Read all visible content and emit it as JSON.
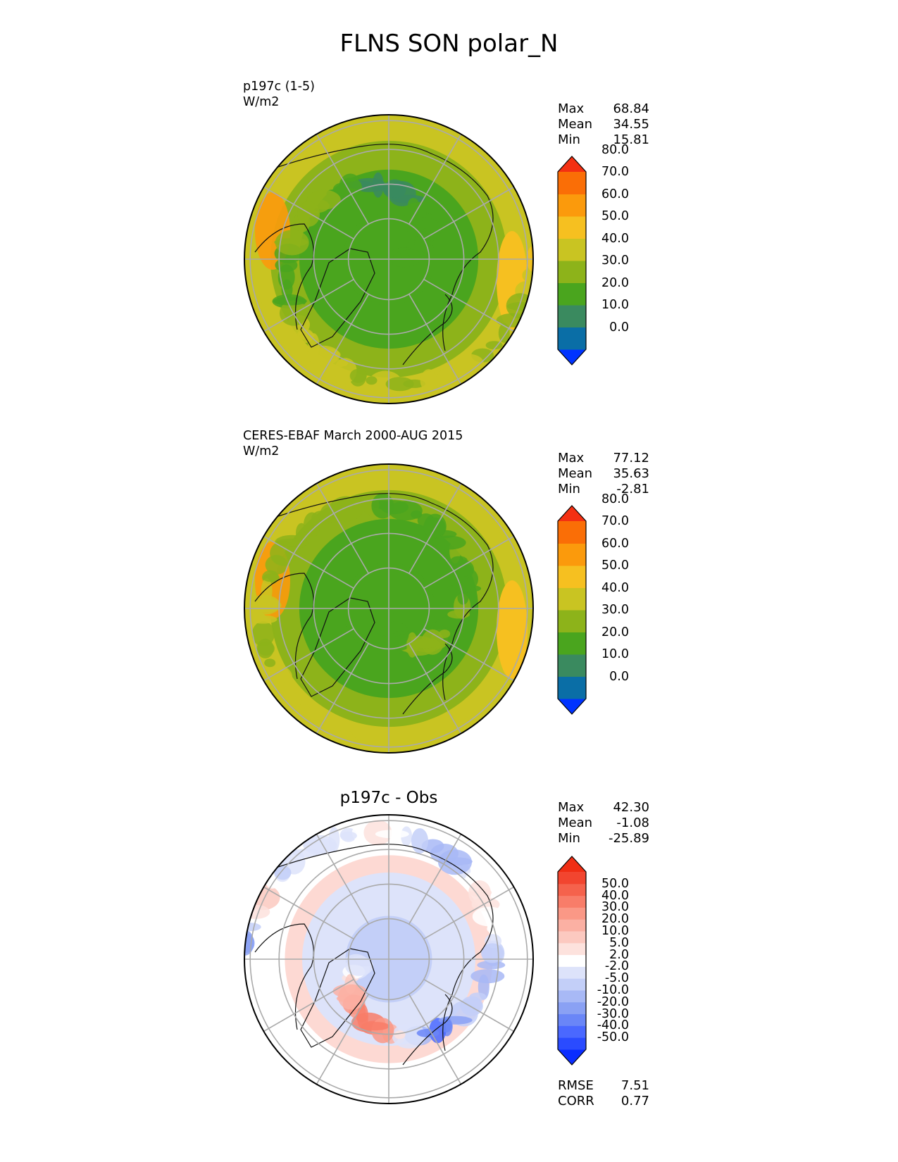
{
  "figure": {
    "title": "FLNS SON polar_N"
  },
  "panels": [
    {
      "id": "test",
      "label_line1": "p197c (1-5)",
      "label_line2": "W/m2",
      "center_title": "",
      "stats": [
        {
          "name": "Max",
          "value": "68.84"
        },
        {
          "name": "Mean",
          "value": "34.55"
        },
        {
          "name": "Min",
          "value": "15.81"
        }
      ],
      "colorbar": {
        "colors": [
          "#0033ff",
          "#0a6ea6",
          "#3a8a5f",
          "#4aa51e",
          "#8db31a",
          "#c9c422",
          "#f6c020",
          "#fb9a0c",
          "#fa6e06",
          "#f43012"
        ],
        "tick_labels": [
          "0.0",
          "10.0",
          "20.0",
          "30.0",
          "40.0",
          "50.0",
          "60.0",
          "70.0",
          "80.0"
        ]
      },
      "extra_stats": []
    },
    {
      "id": "reference",
      "label_line1": "CERES-EBAF March 2000-AUG 2015",
      "label_line2": "W/m2",
      "center_title": "",
      "stats": [
        {
          "name": "Max",
          "value": "77.12"
        },
        {
          "name": "Mean",
          "value": "35.63"
        },
        {
          "name": "Min",
          "value": "-2.81"
        }
      ],
      "colorbar": {
        "colors": [
          "#0033ff",
          "#0a6ea6",
          "#3a8a5f",
          "#4aa51e",
          "#8db31a",
          "#c9c422",
          "#f6c020",
          "#fb9a0c",
          "#fa6e06",
          "#f43012"
        ],
        "tick_labels": [
          "0.0",
          "10.0",
          "20.0",
          "30.0",
          "40.0",
          "50.0",
          "60.0",
          "70.0",
          "80.0"
        ]
      },
      "extra_stats": []
    },
    {
      "id": "difference",
      "label_line1": "",
      "label_line2": "",
      "center_title": "p197c - Obs",
      "stats": [
        {
          "name": "Max",
          "value": "42.30"
        },
        {
          "name": "Mean",
          "value": "-1.08"
        },
        {
          "name": "Min",
          "value": "-25.89"
        }
      ],
      "colorbar": {
        "colors": [
          "#0a2dff",
          "#2a4bff",
          "#4a68ff",
          "#6a86f7",
          "#8aa1f4",
          "#a8b9f6",
          "#c3cff8",
          "#dde3fa",
          "#ffffff",
          "#fde2dd",
          "#fcc9c0",
          "#fbb0a3",
          "#fa9886",
          "#f87d69",
          "#f5624c",
          "#f2452f",
          "#f02e14"
        ],
        "tick_labels": [
          "-50.0",
          "-40.0",
          "-30.0",
          "-20.0",
          "-10.0",
          "-5.0",
          "-2.0",
          "2.0",
          "5.0",
          "10.0",
          "20.0",
          "30.0",
          "40.0",
          "50.0"
        ]
      },
      "extra_stats": [
        {
          "name": "RMSE",
          "value": "7.51"
        },
        {
          "name": "CORR",
          "value": "0.77"
        }
      ]
    }
  ]
}
